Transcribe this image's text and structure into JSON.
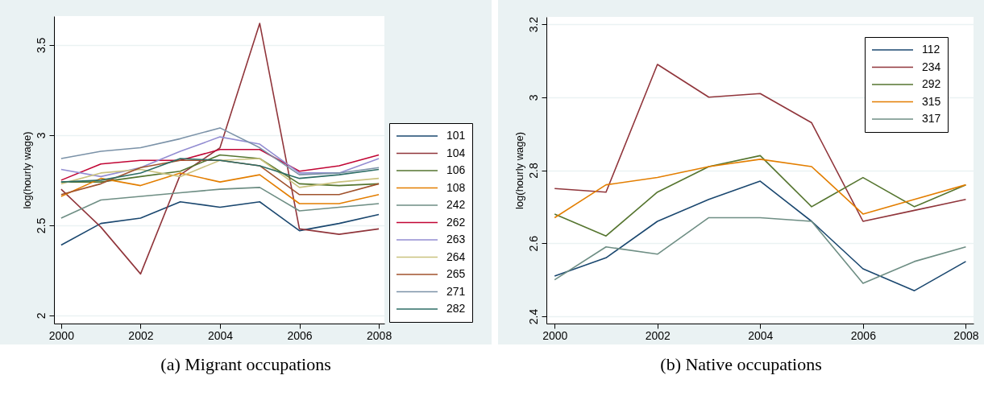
{
  "chart_data": [
    {
      "type": "line",
      "title": "(a) Migrant occupations",
      "ylabel": "log(hourly wage)",
      "x": [
        2000,
        2001,
        2002,
        2003,
        2004,
        2005,
        2006,
        2007,
        2008
      ],
      "xlim": [
        1999.82,
        2008.14
      ],
      "xticks": [
        2000,
        2002,
        2004,
        2006,
        2008
      ],
      "ylim": [
        1.955,
        3.66
      ],
      "yticks": [
        2,
        2.5,
        3,
        3.5
      ],
      "grid": "y",
      "legend": "right",
      "series": [
        {
          "name": "101",
          "color": "#1a476f",
          "values": [
            2.39,
            2.51,
            2.54,
            2.63,
            2.6,
            2.63,
            2.47,
            2.51,
            2.56
          ]
        },
        {
          "name": "104",
          "color": "#90353b",
          "values": [
            2.7,
            2.49,
            2.23,
            2.78,
            2.93,
            3.62,
            2.48,
            2.45,
            2.48
          ]
        },
        {
          "name": "106",
          "color": "#55752f",
          "values": [
            2.74,
            2.74,
            2.77,
            2.8,
            2.89,
            2.87,
            2.73,
            2.72,
            2.73
          ]
        },
        {
          "name": "108",
          "color": "#e37e00",
          "values": [
            2.66,
            2.76,
            2.72,
            2.79,
            2.74,
            2.78,
            2.62,
            2.62,
            2.67
          ]
        },
        {
          "name": "242",
          "color": "#6e8e84",
          "values": [
            2.54,
            2.64,
            2.66,
            2.68,
            2.7,
            2.71,
            2.58,
            2.6,
            2.62
          ]
        },
        {
          "name": "262",
          "color": "#c10534",
          "values": [
            2.75,
            2.84,
            2.86,
            2.86,
            2.92,
            2.92,
            2.8,
            2.83,
            2.89
          ]
        },
        {
          "name": "263",
          "color": "#938dd2",
          "values": [
            2.81,
            2.77,
            2.82,
            2.91,
            2.99,
            2.95,
            2.79,
            2.79,
            2.87
          ]
        },
        {
          "name": "264",
          "color": "#cac27e",
          "values": [
            2.73,
            2.79,
            2.81,
            2.77,
            2.86,
            2.87,
            2.71,
            2.74,
            2.76
          ]
        },
        {
          "name": "265",
          "color": "#a0522d",
          "values": [
            2.67,
            2.73,
            2.82,
            2.86,
            2.86,
            2.83,
            2.67,
            2.67,
            2.73
          ]
        },
        {
          "name": "271",
          "color": "#7b92a8",
          "values": [
            2.87,
            2.91,
            2.93,
            2.98,
            3.04,
            2.93,
            2.78,
            2.79,
            2.82
          ]
        },
        {
          "name": "282",
          "color": "#2d6d66",
          "values": [
            2.74,
            2.75,
            2.79,
            2.87,
            2.86,
            2.83,
            2.76,
            2.78,
            2.81
          ]
        }
      ]
    },
    {
      "type": "line",
      "title": "(b) Native occupations",
      "ylabel": "log(hourly wage)",
      "x": [
        2000,
        2001,
        2002,
        2003,
        2004,
        2005,
        2006,
        2007,
        2008
      ],
      "xlim": [
        1999.84,
        2008.15
      ],
      "xticks": [
        2000,
        2002,
        2004,
        2006,
        2008
      ],
      "ylim": [
        2.38,
        3.22
      ],
      "yticks": [
        2.4,
        2.6,
        2.8,
        3,
        3.2
      ],
      "grid": "y",
      "legend": "top right",
      "series": [
        {
          "name": "112",
          "color": "#1a476f",
          "values": [
            2.51,
            2.56,
            2.66,
            2.72,
            2.77,
            2.66,
            2.53,
            2.47,
            2.55
          ]
        },
        {
          "name": "234",
          "color": "#90353b",
          "values": [
            2.75,
            2.74,
            3.09,
            3.0,
            3.01,
            2.93,
            2.66,
            2.69,
            2.72
          ]
        },
        {
          "name": "292",
          "color": "#55752f",
          "values": [
            2.68,
            2.62,
            2.74,
            2.81,
            2.84,
            2.7,
            2.78,
            2.7,
            2.76
          ]
        },
        {
          "name": "315",
          "color": "#e37e00",
          "values": [
            2.67,
            2.76,
            2.78,
            2.81,
            2.83,
            2.81,
            2.68,
            2.72,
            2.76
          ]
        },
        {
          "name": "317",
          "color": "#6e8e84",
          "values": [
            2.5,
            2.59,
            2.57,
            2.67,
            2.67,
            2.66,
            2.49,
            2.55,
            2.59
          ]
        }
      ]
    }
  ]
}
